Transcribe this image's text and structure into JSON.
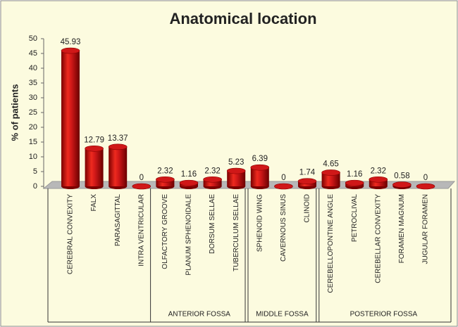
{
  "chart_data": {
    "type": "bar3d",
    "title": "Anatomical location",
    "y_label": "% of patients",
    "categories": [
      "CEREBRAL CONVEXITY",
      "FALX",
      "PARASAGITTAL",
      "INTRA VENTRICULAR",
      "OLFACTORY GROOVE",
      "PLANUM SPHENOIDALE",
      "DORSUM SELLAE",
      "TUBERCULUM SELLAE",
      "SPHENOID WING",
      "CAVERNOUS SINUS",
      "CLINOID",
      "CEREBELLOPONTINE ANGLE",
      "PETROCLIVAL",
      "CEREBELLAR CONVEXITY",
      "FORAMEN MAGNUM",
      "JUGULAR FORAMEN"
    ],
    "values": [
      45.93,
      12.79,
      13.37,
      0,
      2.32,
      1.16,
      2.32,
      5.23,
      6.39,
      0,
      1.74,
      4.65,
      1.16,
      2.32,
      0.58,
      0
    ],
    "groups": [
      {
        "name": "ANTERIOR FOSSA",
        "span": [
          4,
          7
        ]
      },
      {
        "name": "MIDDLE FOSSA",
        "span": [
          8,
          10
        ]
      },
      {
        "name": "POSTERIOR FOSSA",
        "span": [
          11,
          15
        ]
      }
    ],
    "color": "#d01818",
    "ylim": [
      0,
      50
    ],
    "yticks": [
      0,
      5,
      10,
      15,
      20,
      25,
      30,
      35,
      40,
      45,
      50
    ],
    "grid": false
  }
}
